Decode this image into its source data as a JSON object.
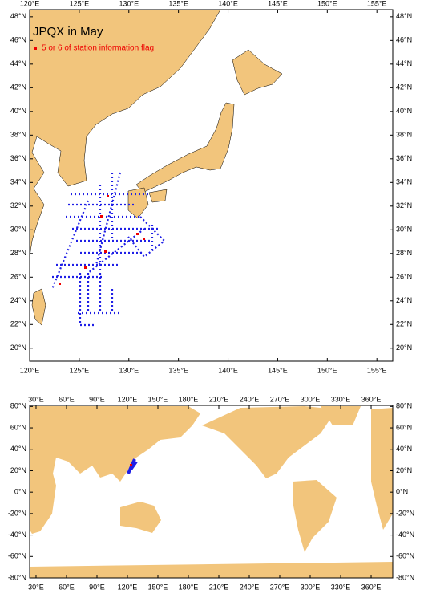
{
  "maps": [
    {
      "title": "JPQX in May",
      "legend": "5 or 6 of station information flag",
      "xlim": [
        120,
        156.6
      ],
      "ylim": [
        18.9,
        48.6
      ],
      "xticks": [
        {
          "value": 120,
          "label": "120°E"
        },
        {
          "value": 125,
          "label": "125°E"
        },
        {
          "value": 130,
          "label": "130°E"
        },
        {
          "value": 135,
          "label": "135°E"
        },
        {
          "value": 140,
          "label": "140°E"
        },
        {
          "value": 145,
          "label": "145°E"
        },
        {
          "value": 150,
          "label": "150°E"
        },
        {
          "value": 155,
          "label": "155°E"
        }
      ],
      "yticks": [
        {
          "value": 20,
          "label": "20°N"
        },
        {
          "value": 22,
          "label": "22°N"
        },
        {
          "value": 24,
          "label": "24°N"
        },
        {
          "value": 26,
          "label": "26°N"
        },
        {
          "value": 28,
          "label": "28°N"
        },
        {
          "value": 30,
          "label": "30°N"
        },
        {
          "value": 32,
          "label": "32°N"
        },
        {
          "value": 34,
          "label": "34°N"
        },
        {
          "value": 36,
          "label": "36°N"
        },
        {
          "value": 38,
          "label": "38°N"
        },
        {
          "value": 40,
          "label": "40°N"
        },
        {
          "value": 42,
          "label": "42°N"
        },
        {
          "value": 44,
          "label": "44°N"
        },
        {
          "value": 46,
          "label": "46°N"
        },
        {
          "value": 48,
          "label": "48°N"
        }
      ]
    },
    {
      "xlim": [
        23.7,
        381.3
      ],
      "ylim": [
        -80,
        81
      ],
      "xticks": [
        {
          "value": 30,
          "label": "30°E"
        },
        {
          "value": 60,
          "label": "60°E"
        },
        {
          "value": 90,
          "label": "90°E"
        },
        {
          "value": 120,
          "label": "120°E"
        },
        {
          "value": 150,
          "label": "150°E"
        },
        {
          "value": 180,
          "label": "180°E"
        },
        {
          "value": 210,
          "label": "210°E"
        },
        {
          "value": 240,
          "label": "240°E"
        },
        {
          "value": 270,
          "label": "270°E"
        },
        {
          "value": 300,
          "label": "300°E"
        },
        {
          "value": 330,
          "label": "330°E"
        },
        {
          "value": 360,
          "label": "360°E"
        }
      ],
      "yticks": [
        {
          "value": -80,
          "label": "-80°N"
        },
        {
          "value": -60,
          "label": "-60°N"
        },
        {
          "value": -40,
          "label": "-40°N"
        },
        {
          "value": -20,
          "label": "-20°N"
        },
        {
          "value": 0,
          "label": "0°N"
        },
        {
          "value": 20,
          "label": "20°N"
        },
        {
          "value": 40,
          "label": "40°N"
        },
        {
          "value": 60,
          "label": "60°N"
        },
        {
          "value": 80,
          "label": "80°N"
        }
      ]
    }
  ]
}
